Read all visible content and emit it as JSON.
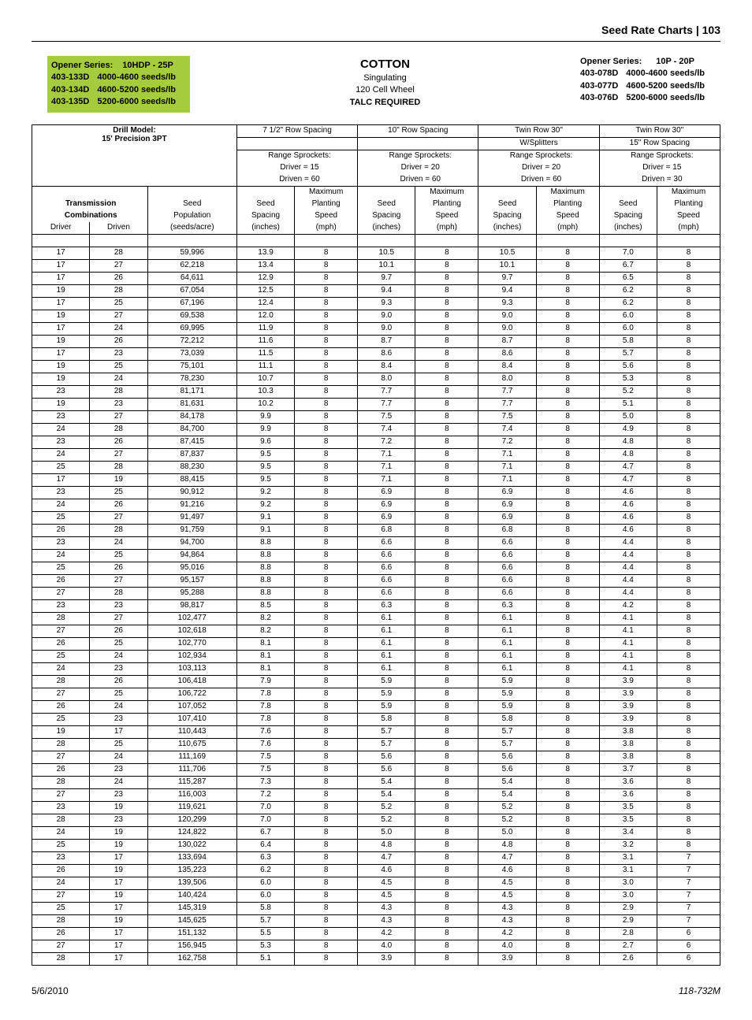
{
  "header": {
    "title": "Seed Rate Charts",
    "page": "103"
  },
  "left_opener": {
    "label": "Opener Series:",
    "series": "10HDP - 25P",
    "parts": [
      {
        "code": "403-133D",
        "desc": "4000-4600 seeds/lb"
      },
      {
        "code": "403-134D",
        "desc": "4600-5200 seeds/lb"
      },
      {
        "code": "403-135D",
        "desc": "5200-6000 seeds/lb"
      }
    ]
  },
  "center": {
    "title": "COTTON",
    "sub1": "Singulating",
    "sub2": "120 Cell Wheel",
    "talc": "TALC REQUIRED"
  },
  "right_opener": {
    "label": "Opener Series:",
    "series": "10P - 20P",
    "parts": [
      {
        "code": "403-078D",
        "desc": "4000-4600 seeds/lb"
      },
      {
        "code": "403-077D",
        "desc": "4600-5200 seeds/lb"
      },
      {
        "code": "403-076D",
        "desc": "5200-6000 seeds/lb"
      }
    ]
  },
  "table_head": {
    "drill_model_label": "Drill Model:",
    "drill_model": "15' Precision 3PT",
    "groups": [
      {
        "name": "7 1/2\" Row Spacing",
        "sub": "",
        "sprocket_label": "Range Sprockets:",
        "driver": "Driver = 15",
        "driven": "Driven = 60"
      },
      {
        "name": "10\" Row Spacing",
        "sub": "",
        "sprocket_label": "Range Sprockets:",
        "driver": "Driver = 20",
        "driven": "Driven = 60"
      },
      {
        "name": "Twin Row 30\"",
        "sub": "W/Splitters",
        "sprocket_label": "Range Sprockets:",
        "driver": "Driver = 20",
        "driven": "Driven = 60"
      },
      {
        "name": "Twin Row 30\"",
        "sub": "15\" Row Spacing",
        "sprocket_label": "Range Sprockets:",
        "driver": "Driver = 15",
        "driven": "Driven = 30"
      }
    ],
    "trans_label": "Transmission",
    "comb_label": "Combinations",
    "seed_pop_1": "Seed",
    "seed_pop_2": "Population",
    "seed_pop_3": "(seeds/acre)",
    "seed_sp_1": "Seed",
    "seed_sp_2": "Spacing",
    "seed_sp_3": "(inches)",
    "max_1": "Maximum",
    "max_2": "Planting",
    "max_3": "Speed",
    "max_4": "(mph)",
    "driver_label": "Driver",
    "driven_label": "Driven"
  },
  "rows": [
    [
      17,
      28,
      "59,996",
      "13.9",
      8,
      "10.5",
      8,
      "10.5",
      8,
      "7.0",
      8
    ],
    [
      17,
      27,
      "62,218",
      "13.4",
      8,
      "10.1",
      8,
      "10.1",
      8,
      "6.7",
      8
    ],
    [
      17,
      26,
      "64,611",
      "12.9",
      8,
      "9.7",
      8,
      "9.7",
      8,
      "6.5",
      8
    ],
    [
      19,
      28,
      "67,054",
      "12.5",
      8,
      "9.4",
      8,
      "9.4",
      8,
      "6.2",
      8
    ],
    [
      17,
      25,
      "67,196",
      "12.4",
      8,
      "9.3",
      8,
      "9.3",
      8,
      "6.2",
      8
    ],
    [
      19,
      27,
      "69,538",
      "12.0",
      8,
      "9.0",
      8,
      "9.0",
      8,
      "6.0",
      8
    ],
    [
      17,
      24,
      "69,995",
      "11.9",
      8,
      "9.0",
      8,
      "9.0",
      8,
      "6.0",
      8
    ],
    [
      19,
      26,
      "72,212",
      "11.6",
      8,
      "8.7",
      8,
      "8.7",
      8,
      "5.8",
      8
    ],
    [
      17,
      23,
      "73,039",
      "11.5",
      8,
      "8.6",
      8,
      "8.6",
      8,
      "5.7",
      8
    ],
    [
      19,
      25,
      "75,101",
      "11.1",
      8,
      "8.4",
      8,
      "8.4",
      8,
      "5.6",
      8
    ],
    [
      19,
      24,
      "78,230",
      "10.7",
      8,
      "8.0",
      8,
      "8.0",
      8,
      "5.3",
      8
    ],
    [
      23,
      28,
      "81,171",
      "10.3",
      8,
      "7.7",
      8,
      "7.7",
      8,
      "5.2",
      8
    ],
    [
      19,
      23,
      "81,631",
      "10.2",
      8,
      "7.7",
      8,
      "7.7",
      8,
      "5.1",
      8
    ],
    [
      23,
      27,
      "84,178",
      "9.9",
      8,
      "7.5",
      8,
      "7.5",
      8,
      "5.0",
      8
    ],
    [
      24,
      28,
      "84,700",
      "9.9",
      8,
      "7.4",
      8,
      "7.4",
      8,
      "4.9",
      8
    ],
    [
      23,
      26,
      "87,415",
      "9.6",
      8,
      "7.2",
      8,
      "7.2",
      8,
      "4.8",
      8
    ],
    [
      24,
      27,
      "87,837",
      "9.5",
      8,
      "7.1",
      8,
      "7.1",
      8,
      "4.8",
      8
    ],
    [
      25,
      28,
      "88,230",
      "9.5",
      8,
      "7.1",
      8,
      "7.1",
      8,
      "4.7",
      8
    ],
    [
      17,
      19,
      "88,415",
      "9.5",
      8,
      "7.1",
      8,
      "7.1",
      8,
      "4.7",
      8
    ],
    [
      23,
      25,
      "90,912",
      "9.2",
      8,
      "6.9",
      8,
      "6.9",
      8,
      "4.6",
      8
    ],
    [
      24,
      26,
      "91,216",
      "9.2",
      8,
      "6.9",
      8,
      "6.9",
      8,
      "4.6",
      8
    ],
    [
      25,
      27,
      "91,497",
      "9.1",
      8,
      "6.9",
      8,
      "6.9",
      8,
      "4.6",
      8
    ],
    [
      26,
      28,
      "91,759",
      "9.1",
      8,
      "6.8",
      8,
      "6.8",
      8,
      "4.6",
      8
    ],
    [
      23,
      24,
      "94,700",
      "8.8",
      8,
      "6.6",
      8,
      "6.6",
      8,
      "4.4",
      8
    ],
    [
      24,
      25,
      "94,864",
      "8.8",
      8,
      "6.6",
      8,
      "6.6",
      8,
      "4.4",
      8
    ],
    [
      25,
      26,
      "95,016",
      "8.8",
      8,
      "6.6",
      8,
      "6.6",
      8,
      "4.4",
      8
    ],
    [
      26,
      27,
      "95,157",
      "8.8",
      8,
      "6.6",
      8,
      "6.6",
      8,
      "4.4",
      8
    ],
    [
      27,
      28,
      "95,288",
      "8.8",
      8,
      "6.6",
      8,
      "6.6",
      8,
      "4.4",
      8
    ],
    [
      23,
      23,
      "98,817",
      "8.5",
      8,
      "6.3",
      8,
      "6.3",
      8,
      "4.2",
      8
    ],
    [
      28,
      27,
      "102,477",
      "8.2",
      8,
      "6.1",
      8,
      "6.1",
      8,
      "4.1",
      8
    ],
    [
      27,
      26,
      "102,618",
      "8.2",
      8,
      "6.1",
      8,
      "6.1",
      8,
      "4.1",
      8
    ],
    [
      26,
      25,
      "102,770",
      "8.1",
      8,
      "6.1",
      8,
      "6.1",
      8,
      "4.1",
      8
    ],
    [
      25,
      24,
      "102,934",
      "8.1",
      8,
      "6.1",
      8,
      "6.1",
      8,
      "4.1",
      8
    ],
    [
      24,
      23,
      "103,113",
      "8.1",
      8,
      "6.1",
      8,
      "6.1",
      8,
      "4.1",
      8
    ],
    [
      28,
      26,
      "106,418",
      "7.9",
      8,
      "5.9",
      8,
      "5.9",
      8,
      "3.9",
      8
    ],
    [
      27,
      25,
      "106,722",
      "7.8",
      8,
      "5.9",
      8,
      "5.9",
      8,
      "3.9",
      8
    ],
    [
      26,
      24,
      "107,052",
      "7.8",
      8,
      "5.9",
      8,
      "5.9",
      8,
      "3.9",
      8
    ],
    [
      25,
      23,
      "107,410",
      "7.8",
      8,
      "5.8",
      8,
      "5.8",
      8,
      "3.9",
      8
    ],
    [
      19,
      17,
      "110,443",
      "7.6",
      8,
      "5.7",
      8,
      "5.7",
      8,
      "3.8",
      8
    ],
    [
      28,
      25,
      "110,675",
      "7.6",
      8,
      "5.7",
      8,
      "5.7",
      8,
      "3.8",
      8
    ],
    [
      27,
      24,
      "111,169",
      "7.5",
      8,
      "5.6",
      8,
      "5.6",
      8,
      "3.8",
      8
    ],
    [
      26,
      23,
      "111,706",
      "7.5",
      8,
      "5.6",
      8,
      "5.6",
      8,
      "3.7",
      8
    ],
    [
      28,
      24,
      "115,287",
      "7.3",
      8,
      "5.4",
      8,
      "5.4",
      8,
      "3.6",
      8
    ],
    [
      27,
      23,
      "116,003",
      "7.2",
      8,
      "5.4",
      8,
      "5.4",
      8,
      "3.6",
      8
    ],
    [
      23,
      19,
      "119,621",
      "7.0",
      8,
      "5.2",
      8,
      "5.2",
      8,
      "3.5",
      8
    ],
    [
      28,
      23,
      "120,299",
      "7.0",
      8,
      "5.2",
      8,
      "5.2",
      8,
      "3.5",
      8
    ],
    [
      24,
      19,
      "124,822",
      "6.7",
      8,
      "5.0",
      8,
      "5.0",
      8,
      "3.4",
      8
    ],
    [
      25,
      19,
      "130,022",
      "6.4",
      8,
      "4.8",
      8,
      "4.8",
      8,
      "3.2",
      8
    ],
    [
      23,
      17,
      "133,694",
      "6.3",
      8,
      "4.7",
      8,
      "4.7",
      8,
      "3.1",
      7
    ],
    [
      26,
      19,
      "135,223",
      "6.2",
      8,
      "4.6",
      8,
      "4.6",
      8,
      "3.1",
      7
    ],
    [
      24,
      17,
      "139,506",
      "6.0",
      8,
      "4.5",
      8,
      "4.5",
      8,
      "3.0",
      7
    ],
    [
      27,
      19,
      "140,424",
      "6.0",
      8,
      "4.5",
      8,
      "4.5",
      8,
      "3.0",
      7
    ],
    [
      25,
      17,
      "145,319",
      "5.8",
      8,
      "4.3",
      8,
      "4.3",
      8,
      "2.9",
      7
    ],
    [
      28,
      19,
      "145,625",
      "5.7",
      8,
      "4.3",
      8,
      "4.3",
      8,
      "2.9",
      7
    ],
    [
      26,
      17,
      "151,132",
      "5.5",
      8,
      "4.2",
      8,
      "4.2",
      8,
      "2.8",
      6
    ],
    [
      27,
      17,
      "156,945",
      "5.3",
      8,
      "4.0",
      8,
      "4.0",
      8,
      "2.7",
      6
    ],
    [
      28,
      17,
      "162,758",
      "5.1",
      8,
      "3.9",
      8,
      "3.9",
      8,
      "2.6",
      6
    ]
  ],
  "footer": {
    "date": "5/6/2010",
    "doc": "118-732M"
  }
}
